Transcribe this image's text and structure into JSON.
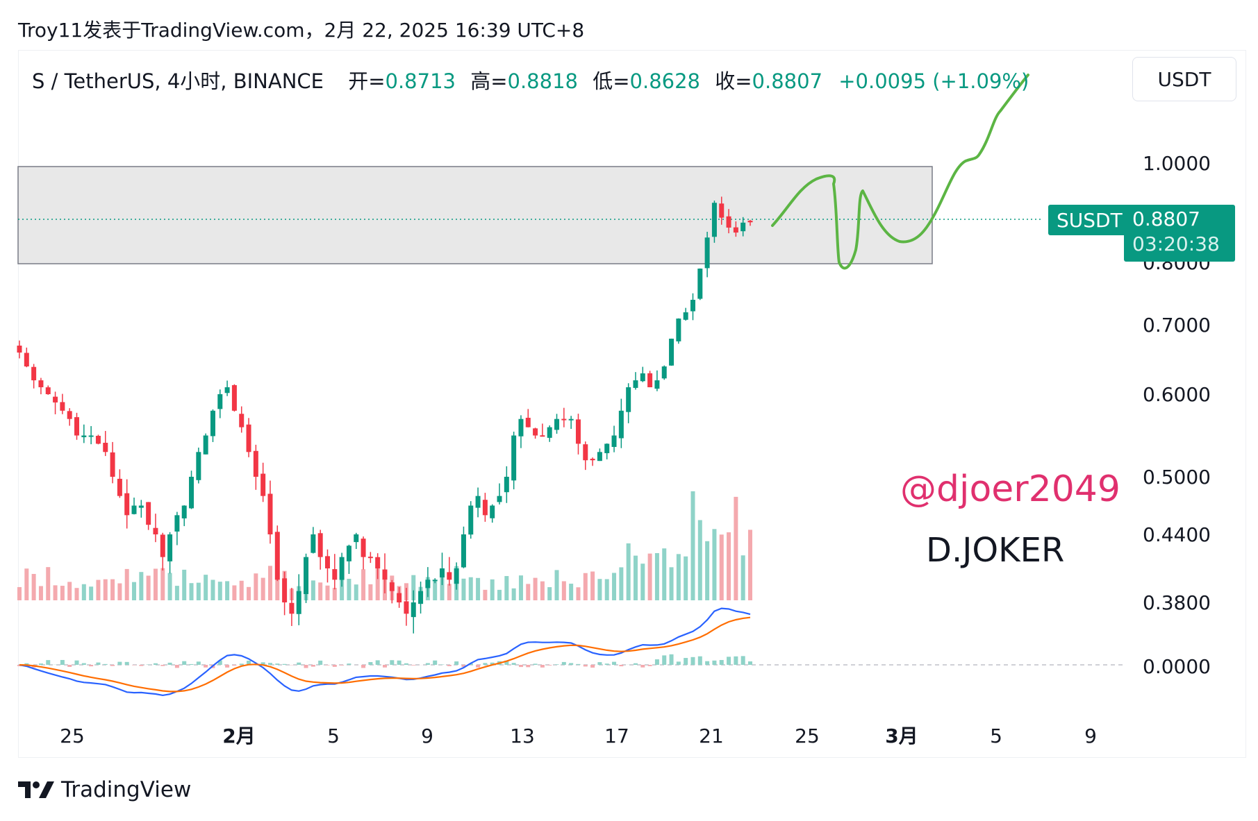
{
  "header": {
    "publisher_line": "Troy11发表于TradingView.com，2月 22, 2025 16:39 UTC+8"
  },
  "legend": {
    "symbol": "S / TetherUS, 4小时, BINANCE",
    "open_label": "开=",
    "open_value": "0.8713",
    "high_label": "高=",
    "high_value": "0.8818",
    "low_label": "低=",
    "low_value": "0.8628",
    "close_label": "收=",
    "close_value": "0.8807",
    "change": "+0.0095 (+1.09%)"
  },
  "currency_button": "USDT",
  "last_price": {
    "ticker": "SUSDT",
    "price": "0.8807",
    "countdown": "03:20:38"
  },
  "watermark": {
    "handle": "@djoer2049",
    "name": "D.JOKER"
  },
  "footer": {
    "brand": "TradingView"
  },
  "colors": {
    "up": "#089981",
    "down": "#f23645",
    "vol_up": "#8fd3c8",
    "vol_down": "#f4a9ae",
    "macd_line": "#2962ff",
    "signal_line": "#ff6d00",
    "drawing": "#5cb544",
    "zone_fill": "#e0e0e0",
    "zone_border": "#787b86",
    "watermark": "#e0306e"
  },
  "chart_data": {
    "type": "candlestick",
    "series_name": "S / TetherUS",
    "interval": "4h",
    "price_axis_ticks": [
      "1.0000",
      "0.8000",
      "0.7000",
      "0.6000",
      "0.5000",
      "0.4400",
      "0.3800",
      "0.0000"
    ],
    "time_axis_ticks": [
      {
        "label": "25",
        "bold": false
      },
      {
        "label": "2月",
        "bold": true
      },
      {
        "label": "5",
        "bold": false
      },
      {
        "label": "9",
        "bold": false
      },
      {
        "label": "13",
        "bold": false
      },
      {
        "label": "17",
        "bold": false
      },
      {
        "label": "21",
        "bold": false
      },
      {
        "label": "25",
        "bold": false
      },
      {
        "label": "3月",
        "bold": true
      },
      {
        "label": "5",
        "bold": false
      },
      {
        "label": "9",
        "bold": false
      }
    ],
    "close_path_approx": [
      0.66,
      0.64,
      0.62,
      0.61,
      0.6,
      0.59,
      0.58,
      0.57,
      0.55,
      0.55,
      0.55,
      0.54,
      0.53,
      0.5,
      0.48,
      0.46,
      0.47,
      0.47,
      0.45,
      0.44,
      0.42,
      0.44,
      0.46,
      0.47,
      0.5,
      0.53,
      0.55,
      0.58,
      0.6,
      0.61,
      0.58,
      0.56,
      0.53,
      0.5,
      0.48,
      0.44,
      0.4,
      0.38,
      0.37,
      0.39,
      0.42,
      0.44,
      0.42,
      0.41,
      0.4,
      0.42,
      0.43,
      0.44,
      0.42,
      0.42,
      0.41,
      0.4,
      0.39,
      0.38,
      0.37,
      0.38,
      0.39,
      0.4,
      0.4,
      0.41,
      0.4,
      0.41,
      0.44,
      0.47,
      0.48,
      0.46,
      0.47,
      0.48,
      0.5,
      0.55,
      0.57,
      0.56,
      0.55,
      0.55,
      0.56,
      0.57,
      0.57,
      0.57,
      0.54,
      0.52,
      0.52,
      0.53,
      0.54,
      0.55,
      0.58,
      0.61,
      0.62,
      0.63,
      0.61,
      0.62,
      0.64,
      0.68,
      0.71,
      0.72,
      0.74,
      0.79,
      0.85,
      0.92,
      0.89,
      0.87,
      0.86,
      0.88,
      0.8807
    ],
    "resistance_zone": {
      "top": 1.0,
      "bottom": 0.8
    },
    "current_close": 0.8807,
    "indicators": [
      "Volume",
      "MACD"
    ]
  }
}
